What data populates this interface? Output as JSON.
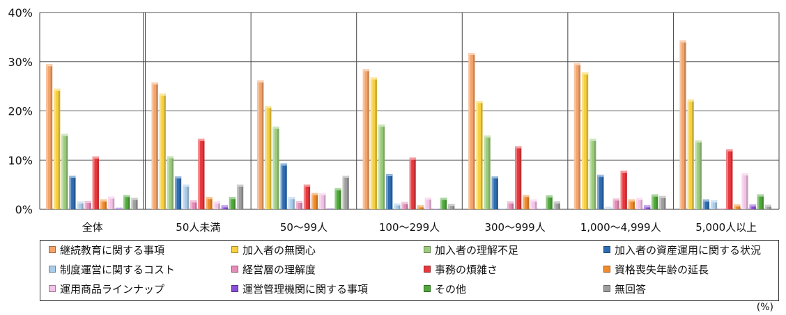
{
  "chart_data": {
    "type": "bar",
    "ylim": [
      0,
      40
    ],
    "yticks": [
      "0%",
      "10%",
      "20%",
      "30%",
      "40%"
    ],
    "grid": true,
    "legend_position": "bottom",
    "unit_label": "(%)",
    "categories": [
      "全体",
      "50人未満",
      "50～99人",
      "100～299人",
      "300～999人",
      "1,000～4,999人",
      "5,000人以上"
    ],
    "series": [
      {
        "name": "継続教育に関する事項",
        "color": "#F4A46A",
        "values": [
          29.5,
          25.8,
          26.2,
          28.5,
          31.8,
          29.7,
          34.3
        ]
      },
      {
        "name": "加入者の無関心",
        "color": "#F7D03F",
        "values": [
          24.5,
          23.5,
          21.0,
          26.8,
          22.0,
          27.8,
          22.3
        ]
      },
      {
        "name": "加入者の理解不足",
        "color": "#9BCC7C",
        "values": [
          15.3,
          10.8,
          16.8,
          17.2,
          15.0,
          14.3,
          14.0
        ]
      },
      {
        "name": "加入者の資産運用に関する状況",
        "color": "#2E6DB4",
        "values": [
          6.8,
          6.7,
          9.3,
          7.2,
          6.7,
          7.0,
          2.0
        ]
      },
      {
        "name": "制度運営に関するコスト",
        "color": "#A9CBE8",
        "values": [
          1.6,
          5.0,
          2.5,
          1.2,
          0.2,
          0.5,
          1.8
        ]
      },
      {
        "name": "経営層の理解度",
        "color": "#E48BB7",
        "values": [
          1.7,
          1.8,
          1.7,
          1.5,
          1.6,
          2.2,
          0.2
        ]
      },
      {
        "name": "事務の煩雑さ",
        "color": "#E8383D",
        "values": [
          10.7,
          14.3,
          5.0,
          10.5,
          12.8,
          7.8,
          12.2
        ]
      },
      {
        "name": "資格喪失年齢の延長",
        "color": "#F08A2A",
        "values": [
          2.0,
          2.5,
          3.3,
          0.8,
          2.9,
          2.0,
          1.0
        ]
      },
      {
        "name": "運用商品ラインナップ",
        "color": "#F3C2E6",
        "values": [
          2.6,
          1.6,
          3.3,
          2.4,
          2.0,
          2.3,
          7.3
        ]
      },
      {
        "name": "運営管理機関に関する事項",
        "color": "#8A4FD8",
        "values": [
          0.3,
          0.8,
          0.2,
          0.1,
          0.1,
          0.8,
          1.0
        ]
      },
      {
        "name": "その他",
        "color": "#4FA83A",
        "values": [
          2.9,
          2.5,
          4.3,
          2.3,
          2.8,
          3.0,
          3.0
        ]
      },
      {
        "name": "無回答",
        "color": "#9E9E9E",
        "values": [
          2.3,
          5.0,
          6.8,
          1.1,
          1.6,
          2.7,
          0.9
        ]
      }
    ]
  }
}
